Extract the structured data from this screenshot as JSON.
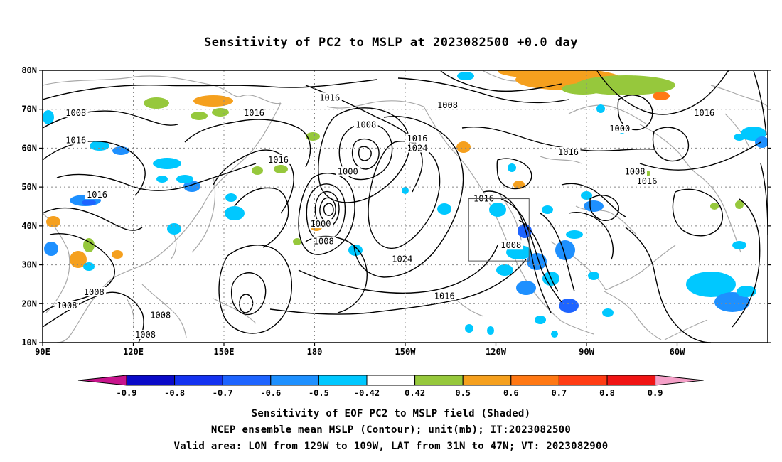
{
  "title": "Sensitivity of PC2 to MSLP at 2023082500 +0.0 day",
  "lat_labels": [
    "80N",
    "70N",
    "60N",
    "50N",
    "40N",
    "30N",
    "20N",
    "10N"
  ],
  "lon_labels": [
    "90E",
    "120E",
    "150E",
    "180",
    "150W",
    "120W",
    "90W",
    "60W"
  ],
  "colorbar": {
    "labels": [
      "-0.9",
      "-0.8",
      "-0.7",
      "-0.6",
      "-0.5",
      "-0.42",
      "0.42",
      "0.5",
      "0.6",
      "0.7",
      "0.8",
      "0.9"
    ],
    "low_extend_color": "#c8148c",
    "high_extend_color": "#f5a0c8",
    "colors": [
      "#0a0ac8",
      "#1432f0",
      "#1e64ff",
      "#1e90ff",
      "#00c8ff",
      "#ffffff",
      "#96c83c",
      "#f5a01e",
      "#ff7814",
      "#ff3c14",
      "#f01414"
    ]
  },
  "contour_labels": [
    {
      "text": "1016",
      "lon": -175.0,
      "lat": 73.0
    },
    {
      "text": "1008",
      "lon": 101.0,
      "lat": 69.0
    },
    {
      "text": "1016",
      "lon": 160.0,
      "lat": 69.0
    },
    {
      "text": "1008",
      "lon": -163.0,
      "lat": 66.0
    },
    {
      "text": "1008",
      "lon": -136.0,
      "lat": 71.0
    },
    {
      "text": "1000",
      "lon": -79.0,
      "lat": 65.0
    },
    {
      "text": "1016",
      "lon": -51.0,
      "lat": 69.0
    },
    {
      "text": "1016",
      "lon": 101.0,
      "lat": 62.0
    },
    {
      "text": "1016",
      "lon": -146.0,
      "lat": 62.5
    },
    {
      "text": "1024",
      "lon": -146.0,
      "lat": 60.0
    },
    {
      "text": "1016",
      "lon": -96.0,
      "lat": 59.0
    },
    {
      "text": "1016",
      "lon": 168.0,
      "lat": 57.0
    },
    {
      "text": "1000",
      "lon": -169.0,
      "lat": 54.0
    },
    {
      "text": "1008",
      "lon": -74.0,
      "lat": 54.0
    },
    {
      "text": "1016",
      "lon": -70.0,
      "lat": 51.5
    },
    {
      "text": "1016",
      "lon": 108.0,
      "lat": 48.0
    },
    {
      "text": "1016",
      "lon": -124.0,
      "lat": 47.0
    },
    {
      "text": "1000",
      "lon": -178.0,
      "lat": 40.5
    },
    {
      "text": "1008",
      "lon": -177.0,
      "lat": 36.0
    },
    {
      "text": "1008",
      "lon": -115.0,
      "lat": 35.0
    },
    {
      "text": "1024",
      "lon": -151.0,
      "lat": 31.5
    },
    {
      "text": "1016",
      "lon": -137.0,
      "lat": 22.0
    },
    {
      "text": "1008",
      "lon": 107.0,
      "lat": 23.0
    },
    {
      "text": "1008",
      "lon": 98.0,
      "lat": 19.5
    },
    {
      "text": "1008",
      "lon": 129.0,
      "lat": 17.0
    },
    {
      "text": "1008",
      "lon": 124.0,
      "lat": 12.0
    }
  ],
  "valid_area": {
    "lon_min": -129,
    "lon_max": -109,
    "lat_min": 31,
    "lat_max": 47
  },
  "captions": [
    "Sensitivity of EOF PC2 to MSLP field (Shaded)",
    "NCEP ensemble mean MSLP (Contour); unit(mb); IT:2023082500",
    "Valid area: LON from 129W to 109W, LAT from 31N to 47N; VT: 2023082900"
  ]
}
